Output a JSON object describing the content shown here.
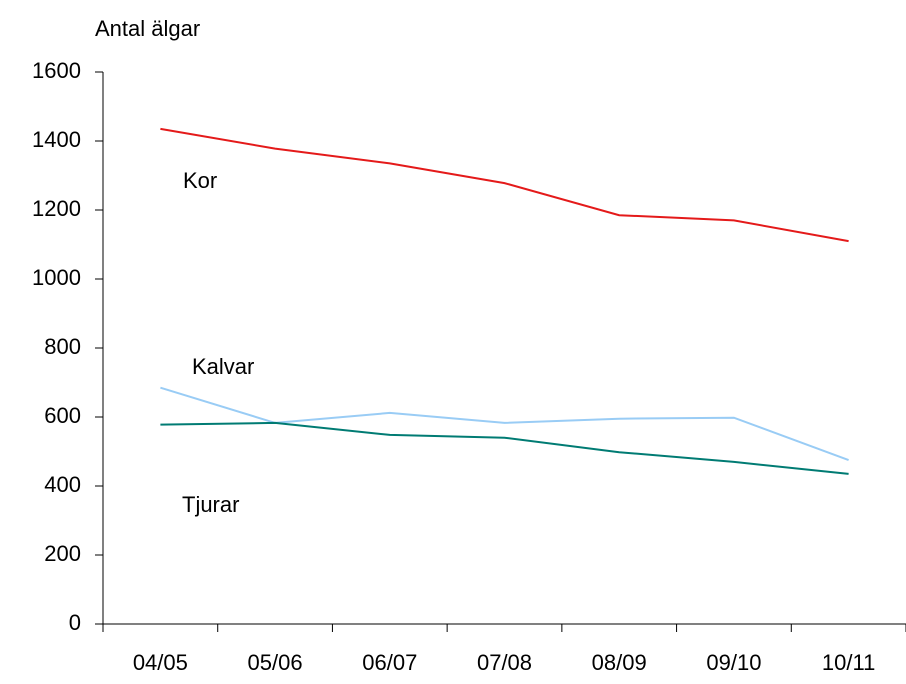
{
  "chart_data": {
    "type": "line",
    "y_label": "Antal älgar",
    "categories": [
      "04/05",
      "05/06",
      "06/07",
      "07/08",
      "08/09",
      "09/10",
      "10/11"
    ],
    "series": [
      {
        "name": "Kor",
        "color": "#e41a1a",
        "values": [
          1435,
          1378,
          1335,
          1278,
          1185,
          1170,
          1110
        ]
      },
      {
        "name": "Kalvar",
        "color": "#99ccf5",
        "values": [
          685,
          583,
          612,
          583,
          595,
          598,
          475
        ]
      },
      {
        "name": "Tjurar",
        "color": "#007b73",
        "values": [
          578,
          583,
          548,
          540,
          498,
          470,
          435
        ]
      }
    ],
    "ylim": [
      0,
      1600
    ],
    "yticks": [
      0,
      200,
      400,
      600,
      800,
      1000,
      1200,
      1400,
      1600
    ]
  }
}
